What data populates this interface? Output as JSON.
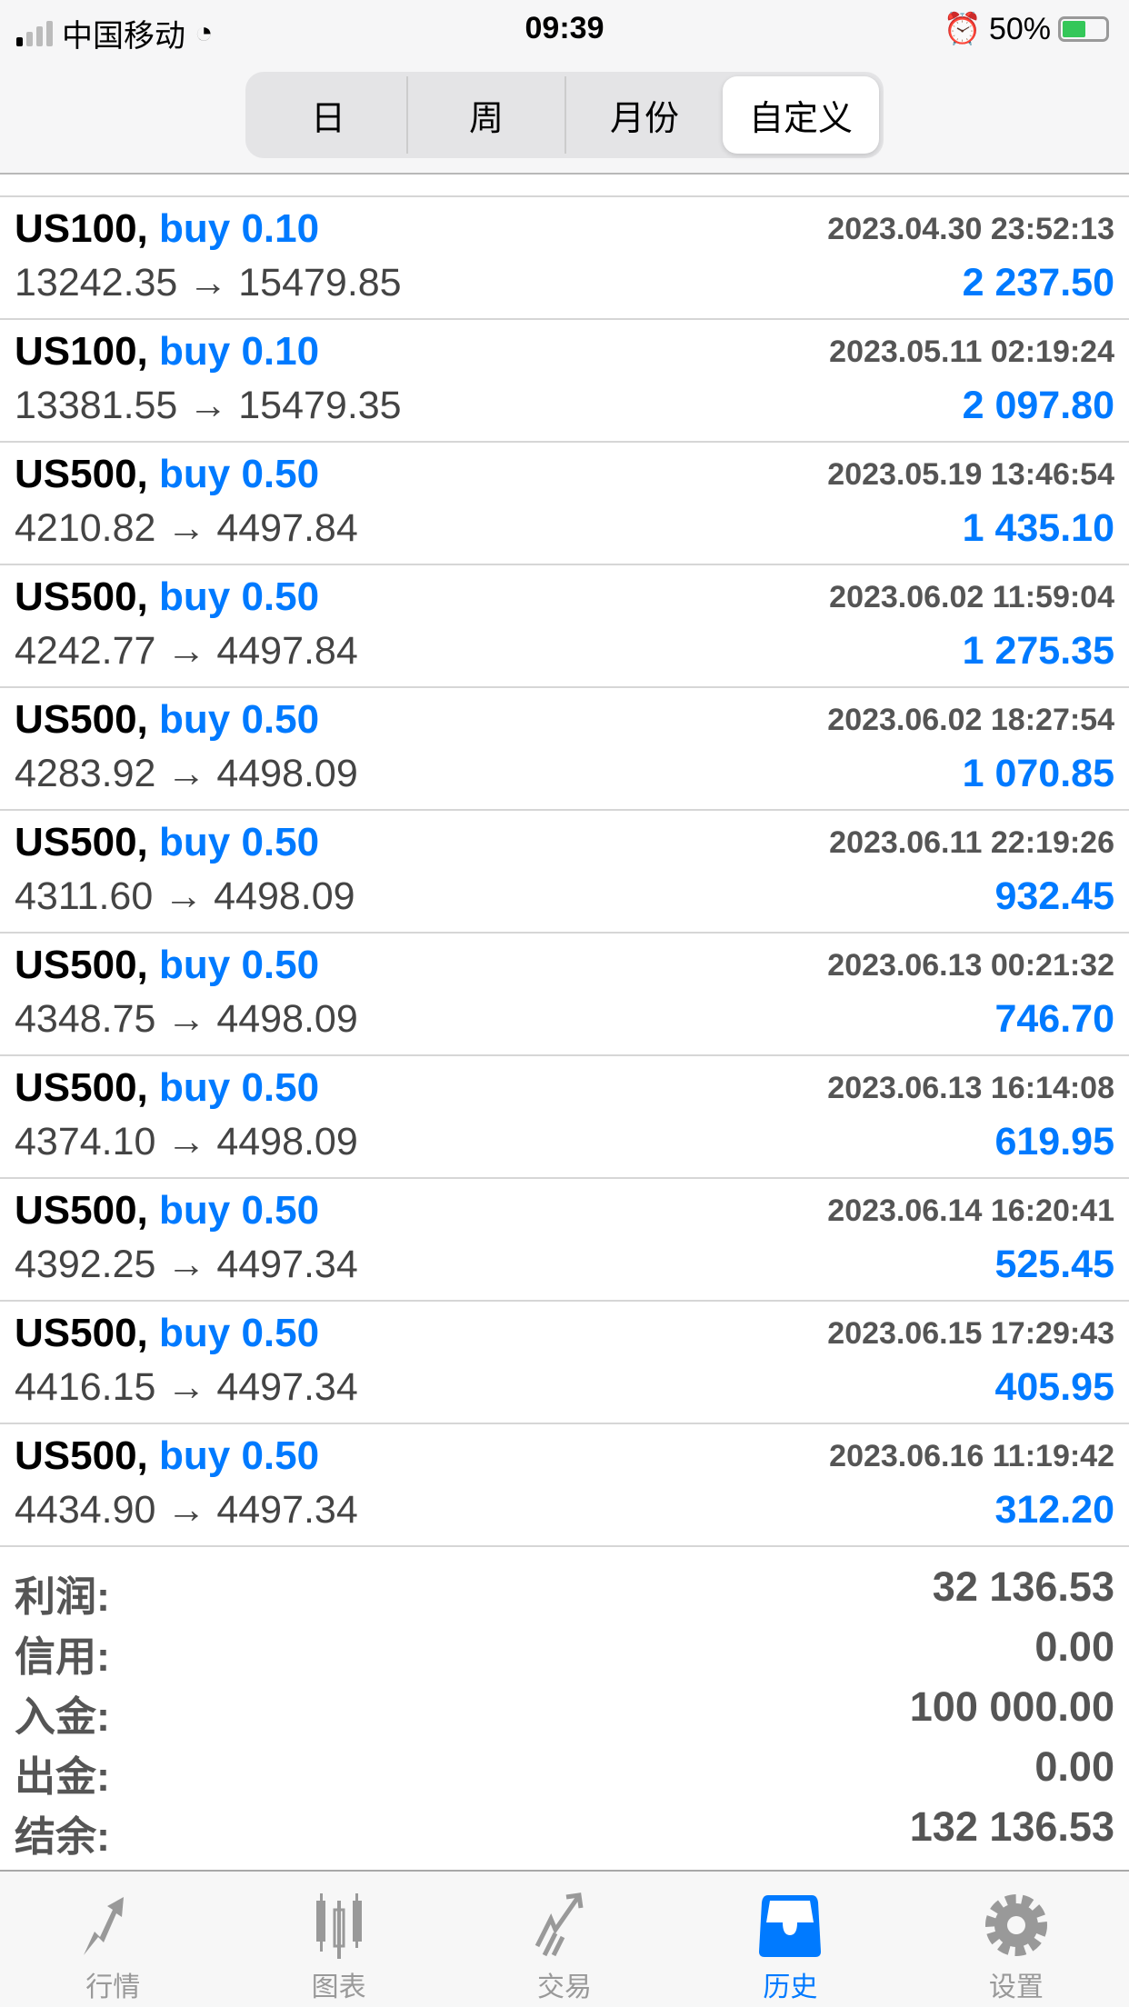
{
  "status": {
    "carrier": "中国移动",
    "time": "09:39",
    "battery": "50%",
    "battery_level": 0.5
  },
  "tabs": [
    {
      "label": "日"
    },
    {
      "label": "周"
    },
    {
      "label": "月份"
    },
    {
      "label": "自定义",
      "selected": true
    }
  ],
  "rows": [
    {
      "symbol": "US100,",
      "side": "buy 0.10",
      "date": "2023.04.30 23:52:13",
      "prices": "13242.35 → 15479.85",
      "profit": "2 237.50"
    },
    {
      "symbol": "US100,",
      "side": "buy 0.10",
      "date": "2023.05.11 02:19:24",
      "prices": "13381.55 → 15479.35",
      "profit": "2 097.80"
    },
    {
      "symbol": "US500,",
      "side": "buy 0.50",
      "date": "2023.05.19 13:46:54",
      "prices": "4210.82 → 4497.84",
      "profit": "1 435.10"
    },
    {
      "symbol": "US500,",
      "side": "buy 0.50",
      "date": "2023.06.02 11:59:04",
      "prices": "4242.77 → 4497.84",
      "profit": "1 275.35"
    },
    {
      "symbol": "US500,",
      "side": "buy 0.50",
      "date": "2023.06.02 18:27:54",
      "prices": "4283.92 → 4498.09",
      "profit": "1 070.85"
    },
    {
      "symbol": "US500,",
      "side": "buy 0.50",
      "date": "2023.06.11 22:19:26",
      "prices": "4311.60 → 4498.09",
      "profit": "932.45"
    },
    {
      "symbol": "US500,",
      "side": "buy 0.50",
      "date": "2023.06.13 00:21:32",
      "prices": "4348.75 → 4498.09",
      "profit": "746.70"
    },
    {
      "symbol": "US500,",
      "side": "buy 0.50",
      "date": "2023.06.13 16:14:08",
      "prices": "4374.10 → 4498.09",
      "profit": "619.95"
    },
    {
      "symbol": "US500,",
      "side": "buy 0.50",
      "date": "2023.06.14 16:20:41",
      "prices": "4392.25 → 4497.34",
      "profit": "525.45"
    },
    {
      "symbol": "US500,",
      "side": "buy 0.50",
      "date": "2023.06.15 17:29:43",
      "prices": "4416.15 → 4497.34",
      "profit": "405.95"
    },
    {
      "symbol": "US500,",
      "side": "buy 0.50",
      "date": "2023.06.16 11:19:42",
      "prices": "4434.90 → 4497.34",
      "profit": "312.20"
    }
  ],
  "summary": [
    {
      "label": "利润:",
      "value": "32 136.53"
    },
    {
      "label": "信用:",
      "value": "0.00"
    },
    {
      "label": "入金:",
      "value": "100 000.00"
    },
    {
      "label": "出金:",
      "value": "0.00"
    },
    {
      "label": "结余:",
      "value": "132 136.53"
    }
  ],
  "nav": [
    {
      "label": "行情",
      "icon": "quotes-arrows-icon"
    },
    {
      "label": "图表",
      "icon": "candlestick-chart-icon"
    },
    {
      "label": "交易",
      "icon": "trade-trend-icon"
    },
    {
      "label": "历史",
      "icon": "history-inbox-icon",
      "active": true
    },
    {
      "label": "设置",
      "icon": "gear-icon"
    }
  ],
  "colors": {
    "accent": "#007aff",
    "text": "#000000",
    "muted": "#555555"
  }
}
